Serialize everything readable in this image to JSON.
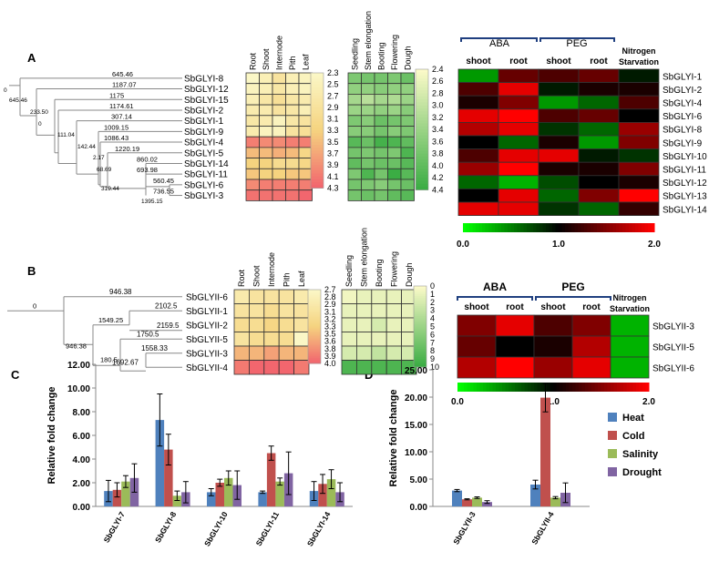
{
  "panel_letters": [
    "A",
    "B",
    "C",
    "D"
  ],
  "colors": {
    "heat_lo": "#f2666e",
    "heat_mid": "#f5d37f",
    "heat_hi": "#fbf7c6",
    "g_lo": "#fbfac8",
    "g_hi": "#3bad44",
    "expr_lo": "#00ff00",
    "expr_mid": "#000000",
    "expr_hi": "#ff0000",
    "bracket": "#1f3f7f"
  },
  "panelA": {
    "tree_labels": [
      "645.46",
      "1187.07",
      "1175",
      "1174.61",
      "307.14",
      "1009.15",
      "1086.43",
      "1220.19",
      "860.02",
      "693.98",
      "560.45",
      "736.55"
    ],
    "node_labels": [
      "0",
      "645.46",
      "233.50",
      "0",
      "111.04",
      "142.44",
      "2.17",
      "68.69",
      "319.44",
      "1395.15"
    ],
    "genes": [
      "SbGLYI-8",
      "SbGLYI-12",
      "SbGLYI-15",
      "SbGLYI-2",
      "SbGLYI-1",
      "SbGLYI-9",
      "SbGLYI-4",
      "SbGLYI-5",
      "SbGLYI-14",
      "SbGLYI-11",
      "SbGLYI-6",
      "SbGLYI-3"
    ],
    "tissue_cols": [
      "Root",
      "Shoot",
      "Internode",
      "Pith",
      "Leaf"
    ],
    "tissue_values": [
      [
        2.5,
        2.7,
        3.0,
        2.7,
        2.6
      ],
      [
        2.6,
        2.7,
        2.9,
        2.7,
        2.6
      ],
      [
        2.7,
        2.9,
        3.1,
        2.9,
        2.8
      ],
      [
        2.8,
        2.8,
        3.0,
        2.9,
        2.7
      ],
      [
        2.9,
        2.8,
        2.6,
        2.9,
        3.0
      ],
      [
        2.8,
        2.6,
        2.6,
        3.0,
        3.1
      ],
      [
        4.1,
        4.0,
        4.0,
        4.1,
        4.1
      ],
      [
        3.6,
        3.6,
        3.7,
        3.6,
        3.3
      ],
      [
        3.4,
        3.4,
        3.2,
        3.2,
        3.3
      ],
      [
        3.5,
        3.4,
        3.4,
        3.5,
        3.5
      ],
      [
        4.0,
        4.1,
        4.1,
        4.1,
        4.1
      ],
      [
        4.2,
        4.2,
        4.2,
        4.2,
        4.3
      ]
    ],
    "tissue_scale": [
      "2.3",
      "2.5",
      "2.7",
      "2.9",
      "3.1",
      "3.3",
      "3.5",
      "3.7",
      "3.9",
      "4.1",
      "4.3"
    ],
    "stage_cols": [
      "Seedling",
      "Stem elongation",
      "Booting",
      "Flowering",
      "Dough"
    ],
    "stage_values": [
      [
        3.4,
        3.5,
        3.5,
        3.4,
        3.6
      ],
      [
        3.2,
        3.2,
        3.3,
        3.2,
        3.2
      ],
      [
        3.0,
        2.8,
        3.0,
        2.9,
        3.1
      ],
      [
        3.1,
        3.1,
        3.2,
        3.1,
        3.3
      ],
      [
        3.4,
        3.3,
        3.6,
        3.5,
        3.4
      ],
      [
        3.3,
        3.3,
        3.5,
        3.3,
        3.4
      ],
      [
        3.8,
        3.6,
        4.0,
        3.9,
        3.7
      ],
      [
        3.5,
        3.4,
        3.5,
        3.4,
        3.9
      ],
      [
        3.7,
        3.5,
        3.6,
        3.6,
        3.8
      ],
      [
        3.4,
        3.9,
        3.5,
        4.1,
        3.8
      ],
      [
        3.5,
        3.4,
        3.3,
        3.5,
        3.6
      ],
      [
        3.5,
        3.6,
        3.5,
        3.7,
        3.8
      ]
    ],
    "stage_scale": [
      "2.4",
      "2.6",
      "2.8",
      "3.0",
      "3.2",
      "3.4",
      "3.6",
      "3.8",
      "4.0",
      "4.2",
      "4.4"
    ],
    "expr_groups": [
      "ABA",
      "PEG"
    ],
    "expr_cols": [
      "shoot",
      "root",
      "shoot",
      "root"
    ],
    "expr_extra_col": [
      "Nitrogen",
      "Starvation"
    ],
    "expr_genes": [
      "SbGLYI-1",
      "SbGLYI-2",
      "SbGLYI-4",
      "SbGLYI-6",
      "SbGLYI-8",
      "SbGLYI-9",
      "SbGLYI-10",
      "SbGLYI-11",
      "SbGLYI-12",
      "SbGLYI-13",
      "SbGLYI-14"
    ],
    "expr_values": [
      [
        0.4,
        1.4,
        1.3,
        1.4,
        0.9
      ],
      [
        1.3,
        1.9,
        0.9,
        1.1,
        1.1
      ],
      [
        1.1,
        1.5,
        0.4,
        0.6,
        1.3
      ],
      [
        1.9,
        2.0,
        1.3,
        1.4,
        1.0
      ],
      [
        1.7,
        1.9,
        0.8,
        0.6,
        1.6
      ],
      [
        1.0,
        0.6,
        1.1,
        0.4,
        1.5
      ],
      [
        1.3,
        1.9,
        1.9,
        0.9,
        0.8
      ],
      [
        1.6,
        2.0,
        1.1,
        1.1,
        1.5
      ],
      [
        0.6,
        0.3,
        0.7,
        1.0,
        1.1
      ],
      [
        1.0,
        1.9,
        0.6,
        1.5,
        2.0
      ],
      [
        1.9,
        1.9,
        0.8,
        0.6,
        1.2
      ]
    ],
    "expr_scale": [
      "0.0",
      "1.0",
      "2.0"
    ]
  },
  "panelB": {
    "tree_labels": [
      "946.38",
      "2102.5",
      "2159.5",
      "1750.5",
      "1558.33",
      "1692.67"
    ],
    "node_labels": [
      "0",
      "1549.25",
      "946.38",
      "180.5"
    ],
    "genes": [
      "SbGLYII-6",
      "SbGLYII-1",
      "SbGLYII-2",
      "SbGLYII-5",
      "SbGLYII-3",
      "SbGLYII-4"
    ],
    "tissue_cols": [
      "Root",
      "Shoot",
      "Internode",
      "Pith",
      "Leaf"
    ],
    "tissue_values": [
      [
        3.1,
        3.2,
        3.2,
        3.2,
        3.1
      ],
      [
        3.2,
        3.2,
        3.3,
        3.2,
        3.2
      ],
      [
        3.3,
        3.3,
        3.4,
        3.3,
        3.2
      ],
      [
        3.2,
        3.3,
        3.3,
        3.3,
        2.9
      ],
      [
        3.6,
        3.6,
        3.7,
        3.6,
        3.6
      ],
      [
        3.9,
        4.0,
        4.0,
        4.0,
        3.9
      ]
    ],
    "tissue_scale": [
      "2.7",
      "2.8",
      "2.9",
      "3.1",
      "3.2",
      "3.3",
      "3.5",
      "3.6",
      "3.8",
      "3.9",
      "4.0"
    ],
    "stage_cols": [
      "Seedling",
      "Stem elongation",
      "Booting",
      "Flowering",
      "Dough"
    ],
    "stage_values": [
      [
        0.5,
        1,
        1,
        1,
        1
      ],
      [
        1,
        1,
        1,
        1,
        1
      ],
      [
        1,
        1,
        2,
        1,
        1
      ],
      [
        1,
        1,
        1,
        1,
        1
      ],
      [
        2,
        2,
        3,
        2,
        2
      ],
      [
        9,
        9,
        9,
        9,
        9
      ]
    ],
    "stage_scale": [
      "0",
      "1",
      "2",
      "3",
      "4",
      "5",
      "6",
      "7",
      "8",
      "9",
      "10"
    ],
    "expr_groups": [
      "ABA",
      "PEG"
    ],
    "expr_cols": [
      "shoot",
      "root",
      "shoot",
      "root"
    ],
    "expr_extra_col": [
      "Nitrogen",
      "Starvation"
    ],
    "expr_genes": [
      "SbGLYII-3",
      "SbGLYII-5",
      "SbGLYII-6"
    ],
    "expr_values": [
      [
        1.5,
        1.9,
        1.3,
        1.5,
        0.3
      ],
      [
        1.4,
        1.0,
        1.1,
        1.7,
        0.3
      ],
      [
        1.7,
        2.0,
        1.6,
        1.9,
        0.3
      ]
    ],
    "expr_scale": [
      "0.0",
      "1.0",
      "2.0"
    ]
  },
  "chart_data": [
    {
      "type": "bar",
      "panel": "C",
      "categories": [
        "SbGLYI-7",
        "SbGLYI-8",
        "SbGLYI-10",
        "SbGLYI-11",
        "SbGLYI-14"
      ],
      "ylabel": "Relative fold change",
      "ylim": [
        0,
        12
      ],
      "yticks": [
        "0.00",
        "2.00",
        "4.00",
        "6.00",
        "8.00",
        "10.00",
        "12.00"
      ],
      "series": [
        {
          "name": "Heat",
          "color": "#4f81bd",
          "values": [
            1.3,
            7.3,
            1.2,
            1.2,
            1.3
          ],
          "errors": [
            0.9,
            2.2,
            0.3,
            0.1,
            0.8
          ]
        },
        {
          "name": "Cold",
          "color": "#c0504d",
          "values": [
            1.4,
            4.8,
            2.0,
            4.5,
            1.9
          ],
          "errors": [
            0.6,
            1.3,
            0.3,
            0.6,
            0.8
          ]
        },
        {
          "name": "Salinity",
          "color": "#9bbb59",
          "values": [
            2.1,
            0.9,
            2.4,
            2.1,
            2.3
          ],
          "errors": [
            0.5,
            0.4,
            0.6,
            0.3,
            0.8
          ]
        },
        {
          "name": "Drought",
          "color": "#8064a2",
          "values": [
            2.4,
            1.2,
            1.8,
            2.8,
            1.2
          ],
          "errors": [
            1.2,
            0.9,
            1.2,
            1.8,
            0.8
          ]
        }
      ]
    },
    {
      "type": "bar",
      "panel": "D",
      "categories": [
        "SbGLYII-3",
        "SbGLYII-4"
      ],
      "ylabel": "Relative fold change",
      "ylim": [
        0,
        25
      ],
      "yticks": [
        "0.00",
        "5.00",
        "10.00",
        "15.00",
        "20.00",
        "25.00"
      ],
      "legend_position": "right",
      "series": [
        {
          "name": "Heat",
          "color": "#4f81bd",
          "values": [
            2.9,
            4.0
          ],
          "errors": [
            0.2,
            0.8
          ]
        },
        {
          "name": "Cold",
          "color": "#c0504d",
          "values": [
            1.3,
            19.9
          ],
          "errors": [
            0.1,
            2.6
          ]
        },
        {
          "name": "Salinity",
          "color": "#9bbb59",
          "values": [
            1.6,
            1.6
          ],
          "errors": [
            0.15,
            0.2
          ]
        },
        {
          "name": "Drought",
          "color": "#8064a2",
          "values": [
            0.8,
            2.5
          ],
          "errors": [
            0.25,
            1.8
          ]
        }
      ]
    }
  ]
}
